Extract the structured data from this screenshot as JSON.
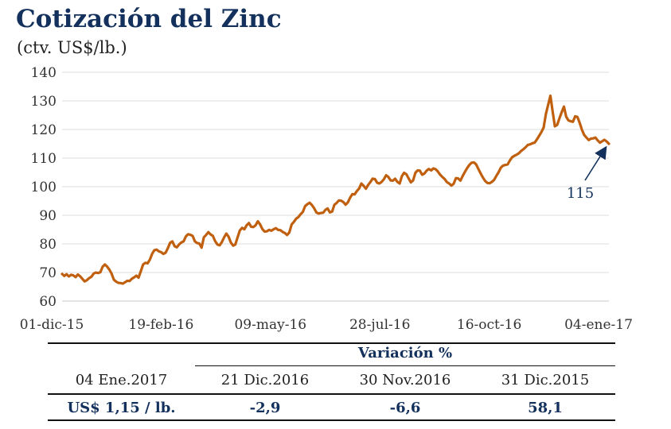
{
  "title": "Cotización del Zinc",
  "subtitle": "(ctv. US$/lb.)",
  "chart_data": {
    "type": "line",
    "title": "Cotización del Zinc",
    "subtitle": "(ctv. US$/lb.)",
    "xlabel": "",
    "ylabel": "",
    "ylim": [
      60,
      140
    ],
    "yticks": [
      "60",
      "70",
      "80",
      "90",
      "100",
      "110",
      "120",
      "130",
      "140"
    ],
    "xticks": [
      "01-dic-15",
      "19-feb-16",
      "09-may-16",
      "28-jul-16",
      "16-oct-16",
      "04-ene-17"
    ],
    "grid": true,
    "line_color": "#c0600f",
    "series": [
      {
        "values": [
          69.5,
          68.8,
          69.4,
          68.6,
          69.2,
          69.0,
          68.4,
          69.3,
          68.7,
          67.8,
          66.9,
          67.3,
          68.0,
          68.5,
          69.6,
          70.0,
          69.8,
          70.1,
          72.0,
          72.8,
          72.1,
          71.0,
          69.6,
          67.5,
          66.8,
          66.4,
          66.3,
          66.1,
          66.6,
          67.1,
          67.0,
          67.8,
          68.3,
          68.9,
          68.2,
          70.5,
          72.8,
          73.4,
          73.2,
          74.5,
          76.5,
          77.8,
          78.0,
          77.4,
          77.1,
          76.5,
          76.9,
          78.5,
          80.4,
          80.9,
          79.2,
          78.8,
          79.8,
          80.5,
          80.9,
          82.6,
          83.4,
          83.2,
          82.8,
          80.9,
          80.3,
          80.1,
          78.7,
          82.3,
          83.1,
          84.1,
          83.3,
          82.8,
          81.0,
          79.8,
          79.5,
          80.6,
          82.3,
          83.6,
          82.5,
          80.5,
          79.4,
          79.8,
          82.3,
          84.7,
          85.6,
          85.1,
          86.5,
          87.3,
          86.0,
          85.9,
          86.5,
          87.9,
          86.8,
          85.2,
          84.3,
          84.4,
          84.9,
          84.6,
          85.1,
          85.5,
          84.9,
          84.8,
          84.2,
          83.8,
          83.1,
          84.0,
          86.8,
          87.7,
          88.8,
          89.4,
          90.4,
          91.2,
          93.2,
          93.9,
          94.4,
          93.6,
          92.5,
          91.0,
          90.6,
          90.8,
          90.9,
          91.9,
          92.4,
          91.0,
          91.3,
          93.7,
          94.3,
          95.2,
          95.1,
          94.6,
          93.7,
          94.5,
          96.2,
          97.4,
          97.3,
          98.5,
          99.4,
          101.1,
          100.3,
          99.3,
          100.6,
          101.6,
          102.8,
          102.7,
          101.4,
          101.1,
          101.7,
          102.6,
          104.0,
          103.4,
          102.2,
          102.1,
          102.8,
          101.7,
          101.1,
          103.7,
          104.9,
          104.3,
          102.9,
          101.5,
          102.2,
          104.9,
          105.7,
          105.6,
          104.2,
          104.6,
          105.6,
          106.2,
          105.7,
          106.4,
          106.1,
          105.3,
          104.2,
          103.4,
          102.7,
          101.6,
          101.1,
          100.4,
          101.0,
          103.0,
          102.9,
          102.1,
          103.7,
          105.2,
          106.5,
          107.6,
          108.4,
          108.5,
          107.8,
          106.2,
          104.6,
          103.2,
          102.0,
          101.3,
          101.2,
          101.7,
          102.4,
          103.8,
          105.1,
          106.7,
          107.4,
          107.6,
          107.8,
          109.2,
          110.3,
          110.8,
          111.2,
          111.7,
          112.5,
          113.1,
          113.8,
          114.6,
          114.8,
          115.2,
          115.4,
          116.5,
          117.8,
          119.1,
          120.7,
          125.4,
          128.7,
          131.8,
          126.3,
          121.1,
          121.6,
          123.9,
          126.0,
          128.0,
          124.5,
          123.2,
          122.9,
          122.7,
          124.6,
          124.4,
          122.4,
          119.9,
          118.1,
          117.2,
          116.3,
          116.8,
          116.9,
          117.2,
          116.2,
          115.4,
          115.9,
          116.4,
          115.8,
          115.0
        ]
      }
    ],
    "annotation": "115"
  },
  "table": {
    "header_group": "Variación %",
    "columns": [
      "04 Ene.2017",
      "21 Dic.2016",
      "30 Nov.2016",
      "31 Dic.2015"
    ],
    "values": [
      "US$ 1,15 / lb.",
      "-2,9",
      "-6,6",
      "58,1"
    ]
  }
}
